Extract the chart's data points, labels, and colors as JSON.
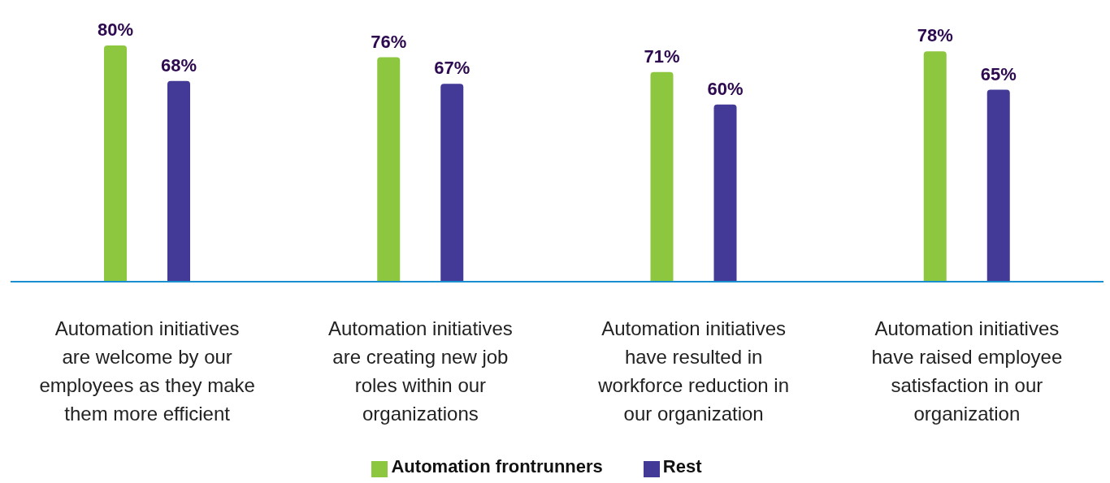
{
  "chart_data": {
    "type": "bar",
    "categories": [
      "Automation initiatives are welcome by our employees as they make them more efficient",
      "Automation initiatives are creating new job roles within our organizations",
      "Automation initiatives have resulted in workforce reduction in our organization",
      "Automation initiatives have raised employee satisfaction in our organization"
    ],
    "series": [
      {
        "name": "Automation frontrunners",
        "color": "#8dc63f",
        "values": [
          80,
          76,
          71,
          78
        ],
        "value_labels": [
          "80%",
          "76%",
          "71%",
          "78%"
        ]
      },
      {
        "name": "Rest",
        "color": "#433a97",
        "values": [
          68,
          67,
          60,
          65
        ],
        "value_labels": [
          "68%",
          "67%",
          "60%",
          "65%"
        ]
      }
    ],
    "legend": "bottom",
    "grid": false
  }
}
